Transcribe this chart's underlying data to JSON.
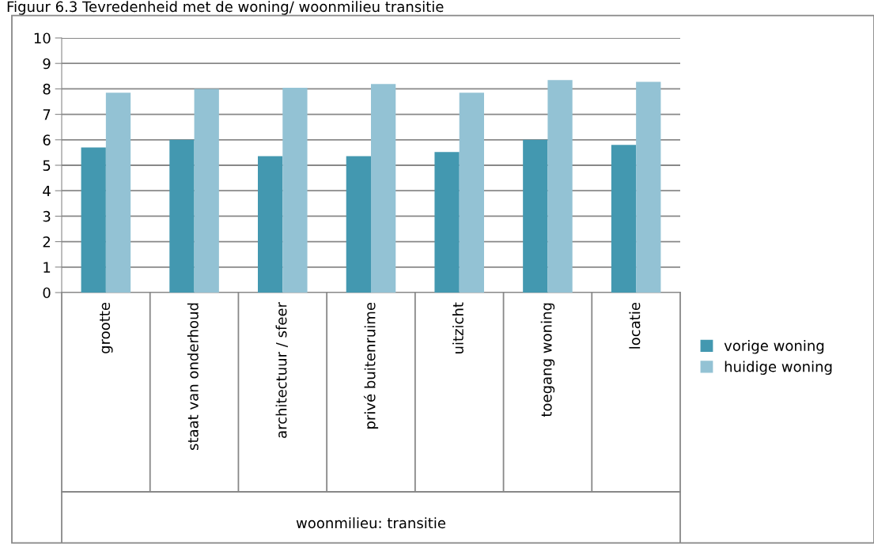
{
  "chart_data": {
    "type": "bar",
    "title": "Figuur 6.3 Tevredenheid met de woning/ woonmilieu transitie",
    "xlabel": "woonmilieu: transitie",
    "categories": [
      "grootte",
      "staat van onderhoud",
      "architectuur / sfeer",
      "privé buitenruime",
      "uitzicht",
      "toegang woning",
      "locatie"
    ],
    "series": [
      {
        "name": "vorige woning",
        "color": "#4398b0",
        "values": [
          5.7,
          6.0,
          5.36,
          5.36,
          5.52,
          6.0,
          5.8
        ]
      },
      {
        "name": "huidige woning",
        "color": "#93c2d4",
        "values": [
          7.85,
          8.0,
          8.04,
          8.19,
          7.85,
          8.35,
          8.28
        ]
      }
    ],
    "ylim": [
      0,
      10
    ],
    "yticks": [
      0,
      1,
      2,
      3,
      4,
      5,
      6,
      7,
      8,
      9,
      10
    ],
    "grid": "y",
    "legend": "right"
  }
}
